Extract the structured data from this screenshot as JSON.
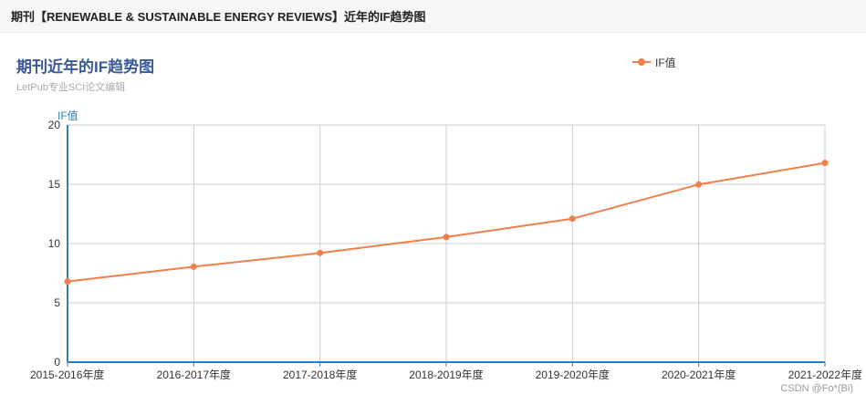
{
  "page_header": {
    "title": "期刊【RENEWABLE & SUSTAINABLE ENERGY REVIEWS】近年的IF趋势图"
  },
  "chart_data": {
    "type": "line",
    "title": "期刊近年的IF趋势图",
    "subtitle": "LetPub专业SCI论文编辑",
    "xlabel": "",
    "ylabel": "IF值",
    "categories": [
      "2015-2016年度",
      "2016-2017年度",
      "2017-2018年度",
      "2018-2019年度",
      "2019-2020年度",
      "2020-2021年度",
      "2021-2022年度"
    ],
    "series": [
      {
        "name": "IF值",
        "values": [
          6.8,
          8.05,
          9.2,
          10.55,
          12.1,
          14.98,
          16.8
        ]
      }
    ],
    "ylim": [
      0,
      20
    ],
    "yticks": [
      0,
      5,
      10,
      15,
      20
    ],
    "grid": true,
    "legend_position": "top-right",
    "color": "#f07f4b",
    "axis_color": "#2c7fb8",
    "grid_color": "#cccccc"
  },
  "watermark": "CSDN @Fo*(Bi)"
}
